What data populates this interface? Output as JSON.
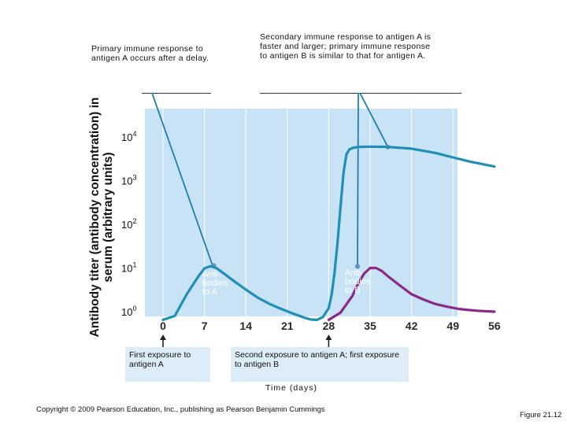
{
  "callouts": {
    "primary": "Primary immune response to antigen A occurs after a delay.",
    "secondary": "Secondary immune response  to antigen A is faster and larger; primary immune response to antigen B is similar to that for antigen A."
  },
  "exposures": {
    "first": "First exposure to antigen A",
    "second": "Second exposure to antigen A; first exposure to antigen B"
  },
  "footer": {
    "copyright": "Copyright © 2009 Pearson Education, Inc., publishing as Pearson Benjamin Cummings",
    "figure": "Figure 21.12"
  },
  "colors": {
    "plot_background": "#c9e3f6",
    "gridline": "#ffffff",
    "antibodies_a": "#1f8fb8",
    "antibodies_b": "#8a2a86",
    "callout_line": "#1f7fa8",
    "marker": "#5a8fc0"
  },
  "chart_data": {
    "type": "line",
    "title": "",
    "xlabel": "Time (days)",
    "ylabel": "Antibody titer (antibody concentration) in serum (arbitrary units)",
    "xlim": [
      -5,
      56
    ],
    "ylim_log10": [
      0,
      4.9
    ],
    "y_scale": "log",
    "grid": "vertical",
    "x_ticks": [
      0,
      7,
      14,
      21,
      28,
      35,
      42,
      49,
      56
    ],
    "y_ticks": [
      {
        "base": "10",
        "exp": "0",
        "value": 1
      },
      {
        "base": "10",
        "exp": "1",
        "value": 10
      },
      {
        "base": "10",
        "exp": "2",
        "value": 100
      },
      {
        "base": "10",
        "exp": "3",
        "value": 1000
      },
      {
        "base": "10",
        "exp": "4",
        "value": 10000
      }
    ],
    "series": [
      {
        "name": "Antibodies to A",
        "label_lines": [
          "Anti-",
          "bodies",
          "to A"
        ],
        "x": [
          0,
          2,
          4,
          6,
          7,
          8,
          9,
          10,
          12,
          14,
          16,
          18,
          20,
          22,
          24,
          25,
          26,
          27,
          28,
          28.5,
          29,
          29.5,
          30,
          30.5,
          31,
          31.5,
          32,
          33,
          35,
          38,
          42,
          46,
          49,
          52,
          56
        ],
        "y": [
          0.65,
          0.8,
          2.5,
          6.5,
          9.8,
          11,
          10,
          8,
          5,
          3.2,
          2.1,
          1.5,
          1.15,
          0.9,
          0.72,
          0.66,
          0.65,
          0.75,
          1.2,
          2.5,
          8,
          40,
          250,
          1500,
          4000,
          5200,
          5600,
          5900,
          6000,
          5900,
          5400,
          4300,
          3400,
          2700,
          2100
        ]
      },
      {
        "name": "Antibodies to B",
        "label_lines": [
          "Anti-",
          "bodies",
          "to B"
        ],
        "x": [
          28,
          30,
          32,
          33,
          34,
          35,
          36,
          37,
          38,
          40,
          42,
          44,
          46,
          48,
          50,
          53,
          56
        ],
        "y": [
          0.65,
          0.95,
          2.3,
          4.5,
          7.5,
          10,
          10,
          8.5,
          6.5,
          4,
          2.5,
          1.9,
          1.5,
          1.3,
          1.15,
          1.05,
          1.0
        ]
      }
    ],
    "exposure_days": [
      0,
      28
    ]
  }
}
